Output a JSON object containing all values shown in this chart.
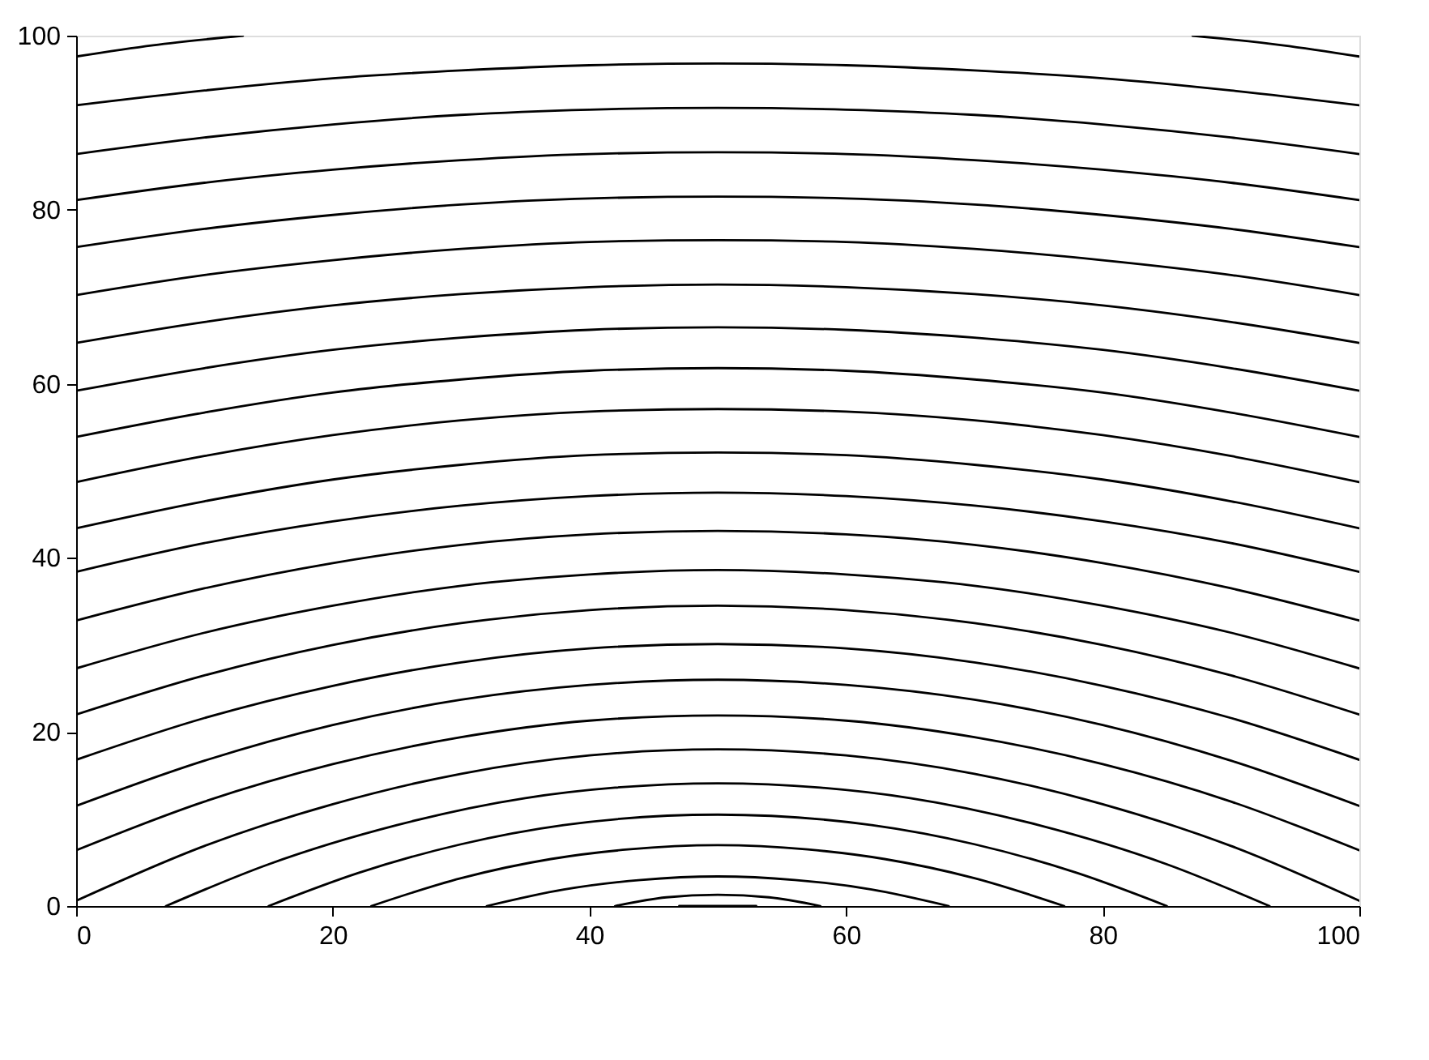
{
  "chart_data": {
    "type": "line",
    "xlim": [
      0,
      100
    ],
    "ylim": [
      0,
      100
    ],
    "xticks": [
      0,
      20,
      40,
      60,
      80,
      100
    ],
    "yticks": [
      0,
      20,
      40,
      60,
      80,
      100
    ],
    "series": [
      {
        "color": "#000000",
        "x": [
          0,
          6,
          13
        ],
        "values": [
          97.6,
          98.9,
          100
        ]
      },
      {
        "color": "#000000",
        "x": [
          87,
          94,
          100
        ],
        "values": [
          100,
          98.9,
          97.6
        ]
      },
      {
        "color": "#000000",
        "x": [
          0,
          10,
          20,
          30,
          40,
          50,
          60,
          70,
          80,
          90,
          100
        ],
        "values": [
          92.0,
          93.7,
          95.1,
          96.0,
          96.6,
          96.8,
          96.6,
          96.0,
          95.1,
          93.7,
          92.0
        ]
      },
      {
        "color": "#000000",
        "x": [
          0,
          10,
          20,
          30,
          40,
          50,
          60,
          70,
          80,
          90,
          100
        ],
        "values": [
          86.4,
          88.3,
          89.8,
          90.9,
          91.5,
          91.7,
          91.5,
          90.9,
          89.8,
          88.3,
          86.4
        ]
      },
      {
        "color": "#000000",
        "x": [
          0,
          10,
          20,
          30,
          40,
          50,
          60,
          70,
          80,
          90,
          100
        ],
        "values": [
          81.1,
          83.1,
          84.6,
          85.7,
          86.4,
          86.6,
          86.4,
          85.7,
          84.6,
          83.1,
          81.1
        ]
      },
      {
        "color": "#000000",
        "x": [
          0,
          10,
          20,
          30,
          40,
          50,
          60,
          70,
          80,
          90,
          100
        ],
        "values": [
          75.7,
          77.8,
          79.4,
          80.6,
          81.3,
          81.5,
          81.3,
          80.6,
          79.4,
          77.8,
          75.7
        ]
      },
      {
        "color": "#000000",
        "x": [
          0,
          10,
          20,
          30,
          40,
          50,
          60,
          70,
          80,
          90,
          100
        ],
        "values": [
          70.2,
          72.5,
          74.2,
          75.5,
          76.3,
          76.5,
          76.3,
          75.5,
          74.2,
          72.5,
          70.2
        ]
      },
      {
        "color": "#000000",
        "x": [
          0,
          10,
          20,
          30,
          40,
          50,
          60,
          70,
          80,
          90,
          100
        ],
        "values": [
          64.7,
          67.1,
          69.0,
          70.3,
          71.1,
          71.4,
          71.1,
          70.3,
          69.0,
          67.1,
          64.7
        ]
      },
      {
        "color": "#000000",
        "x": [
          0,
          10,
          20,
          30,
          40,
          50,
          60,
          70,
          80,
          90,
          100
        ],
        "values": [
          59.2,
          61.8,
          63.9,
          65.3,
          66.2,
          66.5,
          66.2,
          65.3,
          63.9,
          61.8,
          59.2
        ]
      },
      {
        "color": "#000000",
        "x": [
          0,
          10,
          20,
          30,
          40,
          50,
          60,
          70,
          80,
          90,
          100
        ],
        "values": [
          53.9,
          56.7,
          59.0,
          60.5,
          61.5,
          61.8,
          61.5,
          60.5,
          59.0,
          56.7,
          53.9
        ]
      },
      {
        "color": "#000000",
        "x": [
          0,
          10,
          20,
          30,
          40,
          50,
          60,
          70,
          80,
          90,
          100
        ],
        "values": [
          48.7,
          51.7,
          54.1,
          55.8,
          56.8,
          57.1,
          56.8,
          55.8,
          54.1,
          51.7,
          48.7
        ]
      },
      {
        "color": "#000000",
        "x": [
          0,
          10,
          20,
          30,
          40,
          50,
          60,
          70,
          80,
          90,
          100
        ],
        "values": [
          43.4,
          46.5,
          49.0,
          50.7,
          51.8,
          52.1,
          51.8,
          50.7,
          49.0,
          46.5,
          43.4
        ]
      },
      {
        "color": "#000000",
        "x": [
          0,
          10,
          20,
          30,
          40,
          50,
          60,
          70,
          80,
          90,
          100
        ],
        "values": [
          38.4,
          41.7,
          44.2,
          46.0,
          47.1,
          47.5,
          47.1,
          46.0,
          44.2,
          41.7,
          38.4
        ]
      },
      {
        "color": "#000000",
        "x": [
          0,
          10,
          20,
          30,
          40,
          50,
          60,
          70,
          80,
          90,
          100
        ],
        "values": [
          32.8,
          36.5,
          39.4,
          41.5,
          42.7,
          43.1,
          42.7,
          41.5,
          39.4,
          36.5,
          32.8
        ]
      },
      {
        "color": "#000000",
        "x": [
          0,
          10,
          20,
          30,
          40,
          50,
          60,
          70,
          80,
          90,
          100
        ],
        "values": [
          27.3,
          31.4,
          34.5,
          36.8,
          38.1,
          38.6,
          38.1,
          36.8,
          34.5,
          31.4,
          27.3
        ]
      },
      {
        "color": "#000000",
        "x": [
          0,
          10,
          20,
          30,
          40,
          50,
          60,
          70,
          80,
          90,
          100
        ],
        "values": [
          22.0,
          26.5,
          30.0,
          32.5,
          34.0,
          34.5,
          34.0,
          32.5,
          30.0,
          26.5,
          22.0
        ]
      },
      {
        "color": "#000000",
        "x": [
          0,
          10,
          20,
          30,
          40,
          50,
          60,
          70,
          80,
          90,
          100
        ],
        "values": [
          16.8,
          21.6,
          25.3,
          28.0,
          29.6,
          30.1,
          29.6,
          28.0,
          25.3,
          21.6,
          16.8
        ]
      },
      {
        "color": "#000000",
        "x": [
          0,
          10,
          20,
          30,
          40,
          50,
          60,
          70,
          80,
          90,
          100
        ],
        "values": [
          11.5,
          16.7,
          20.8,
          23.7,
          25.4,
          26.0,
          25.4,
          23.7,
          20.8,
          16.7,
          11.5
        ]
      },
      {
        "color": "#000000",
        "x": [
          0,
          10,
          20,
          30,
          40,
          50,
          60,
          70,
          80,
          90,
          100
        ],
        "values": [
          6.4,
          12.0,
          16.3,
          19.4,
          21.3,
          21.9,
          21.3,
          19.4,
          16.3,
          12.0,
          6.4
        ]
      },
      {
        "color": "#000000",
        "x": [
          0,
          10,
          20,
          30,
          40,
          50,
          60,
          70,
          80,
          90,
          100
        ],
        "values": [
          0.6,
          6.9,
          11.7,
          15.2,
          17.3,
          18.0,
          17.3,
          15.2,
          11.7,
          6.9,
          0.6
        ]
      },
      {
        "color": "#000000",
        "x": [
          7,
          15,
          25,
          35,
          42,
          50,
          58,
          65,
          75,
          85,
          93
        ],
        "values": [
          0,
          4.8,
          9.3,
          12.4,
          13.6,
          14.1,
          13.6,
          12.4,
          9.3,
          4.8,
          0
        ]
      },
      {
        "color": "#000000",
        "x": [
          15,
          22,
          30,
          38,
          50,
          62,
          70,
          78,
          85
        ],
        "values": [
          0,
          3.8,
          7.1,
          9.3,
          10.5,
          9.3,
          7.1,
          3.8,
          0
        ]
      },
      {
        "color": "#000000",
        "x": [
          23,
          30,
          37,
          43,
          50,
          57,
          63,
          70,
          77
        ],
        "values": [
          0,
          3.2,
          5.4,
          6.5,
          7.0,
          6.5,
          5.4,
          3.2,
          0
        ]
      },
      {
        "color": "#000000",
        "x": [
          32,
          38,
          44,
          50,
          56,
          62,
          68
        ],
        "values": [
          0,
          1.9,
          3.0,
          3.4,
          3.0,
          1.9,
          0
        ]
      },
      {
        "color": "#000000",
        "x": [
          42,
          46,
          50,
          54,
          58
        ],
        "values": [
          0,
          1.0,
          1.3,
          1.0,
          0
        ]
      },
      {
        "color": "#000000",
        "x": [
          47,
          53
        ],
        "values": [
          0,
          0
        ]
      }
    ]
  }
}
